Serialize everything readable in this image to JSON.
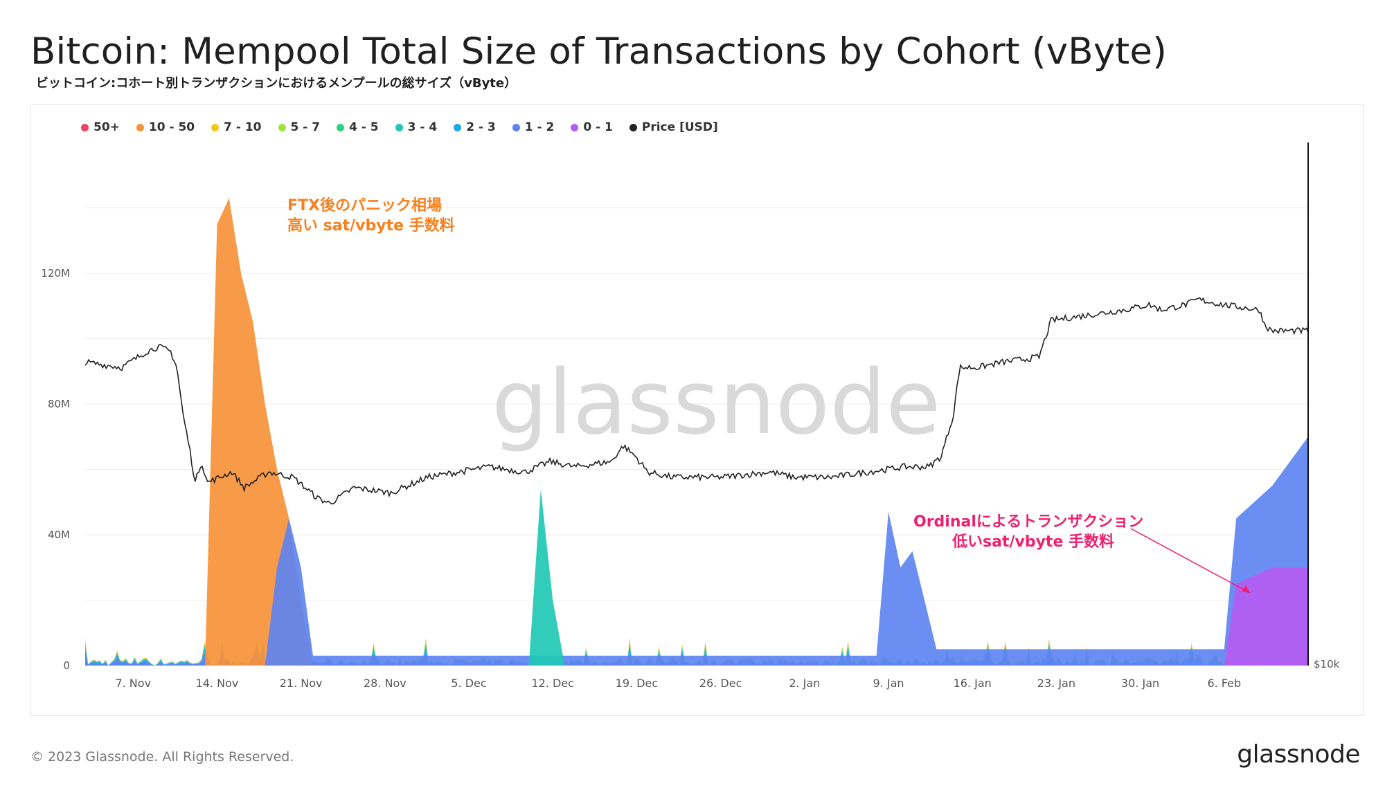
{
  "header": {
    "title": "Bitcoin: Mempool Total Size of Transactions by Cohort (vByte)",
    "subtitle": "ビットコイン:コホート別トランザクションにおけるメンプールの総サイズ（vByte）"
  },
  "legend": [
    {
      "label": "50+",
      "color": "#f0435e"
    },
    {
      "label": "10 - 50",
      "color": "#f7923a"
    },
    {
      "label": "7 - 10",
      "color": "#f5c518"
    },
    {
      "label": "5 - 7",
      "color": "#9fe23c"
    },
    {
      "label": "4 - 5",
      "color": "#2ed47a"
    },
    {
      "label": "3 - 4",
      "color": "#1fc8b4"
    },
    {
      "label": "2 - 3",
      "color": "#1aa8ee"
    },
    {
      "label": "1 - 2",
      "color": "#5d84f0"
    },
    {
      "label": "0 - 1",
      "color": "#b65cf0"
    },
    {
      "label": "Price [USD]",
      "color": "#222222"
    }
  ],
  "chart_data": {
    "type": "area",
    "x_range": [
      "2022-11-03",
      "2023-02-13"
    ],
    "x_ticks": [
      "7. Nov",
      "14. Nov",
      "21. Nov",
      "28. Nov",
      "5. Dec",
      "12. Dec",
      "19. Dec",
      "26. Dec",
      "2. Jan",
      "9. Jan",
      "16. Jan",
      "23. Jan",
      "30. Jan",
      "6. Feb"
    ],
    "y_left_ticks": [
      "0",
      "40M",
      "80M",
      "120M"
    ],
    "y_left_range": [
      0,
      160000000
    ],
    "y_right_ticks": [
      "$10k"
    ],
    "grid": true,
    "legend_placement": "top-left",
    "series_approx": [
      {
        "name": "10 - 50",
        "points": [
          [
            "2022-11-13",
            0
          ],
          [
            "2022-11-14",
            135000000
          ],
          [
            "2022-11-15",
            143000000
          ],
          [
            "2022-11-16",
            120000000
          ],
          [
            "2022-11-17",
            105000000
          ],
          [
            "2022-11-18",
            80000000
          ],
          [
            "2022-11-19",
            60000000
          ],
          [
            "2022-11-20",
            45000000
          ],
          [
            "2022-11-21",
            20000000
          ],
          [
            "2022-11-22",
            0
          ]
        ]
      },
      {
        "name": "1 - 2",
        "points": [
          [
            "2022-11-18",
            0
          ],
          [
            "2022-11-19",
            30000000
          ],
          [
            "2022-11-20",
            45000000
          ],
          [
            "2022-11-21",
            30000000
          ],
          [
            "2022-11-22",
            3000000
          ],
          [
            "2023-01-08",
            3000000
          ],
          [
            "2023-01-09",
            47000000
          ],
          [
            "2023-01-10",
            30000000
          ],
          [
            "2023-01-11",
            35000000
          ],
          [
            "2023-01-12",
            20000000
          ],
          [
            "2023-01-13",
            5000000
          ],
          [
            "2023-02-06",
            5000000
          ],
          [
            "2023-02-07",
            45000000
          ],
          [
            "2023-02-10",
            55000000
          ],
          [
            "2023-02-13",
            70000000
          ]
        ]
      },
      {
        "name": "3 - 4",
        "points": [
          [
            "2022-12-10",
            0
          ],
          [
            "2022-12-11",
            54000000
          ],
          [
            "2022-12-12",
            20000000
          ],
          [
            "2022-12-13",
            0
          ]
        ]
      },
      {
        "name": "0 - 1",
        "points": [
          [
            "2023-02-06",
            0
          ],
          [
            "2023-02-07",
            25000000
          ],
          [
            "2023-02-10",
            30000000
          ],
          [
            "2023-02-13",
            30000000
          ]
        ]
      }
    ],
    "price_series_name": "Price [USD]",
    "annotations": [
      {
        "text_line1": "FTX後のパニック相場",
        "text_line2": "高い sat/vbyte 手数料",
        "color": "#f7801e"
      },
      {
        "text_line1": "Ordinalによるトランザクション",
        "text_line2": "低いsat/vbyte 手数料",
        "color": "#ee1f6e"
      }
    ]
  },
  "watermark": "glassnode",
  "footer": {
    "copyright": "© 2023 Glassnode. All Rights Reserved.",
    "logo": "glassnode"
  }
}
